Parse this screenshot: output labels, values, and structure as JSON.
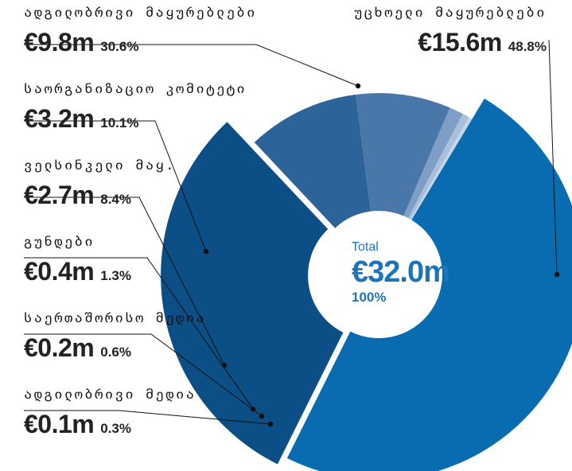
{
  "chart_data": {
    "type": "pie",
    "currency": "€",
    "unit": "m",
    "slices": [
      {
        "label": "უცხოელი მაყურებლები",
        "amount": "€15.6m",
        "value": 15.6,
        "percent": "48.8%",
        "color": "#0a6cb0"
      },
      {
        "label": "ადგილობრივი მაყურებლები",
        "amount": "€9.8m",
        "value": 9.8,
        "percent": "30.6%",
        "color": "#0b4f86"
      },
      {
        "label": "საორგანიზაციო კომიტეტი",
        "amount": "€3.2m",
        "value": 3.2,
        "percent": "10.1%",
        "color": "#2c6399"
      },
      {
        "label": "ველსინკელი მაყ.",
        "amount": "€2.7m",
        "value": 2.7,
        "percent": "8.4%",
        "color": "#4a77a9"
      },
      {
        "label": "გუნდები",
        "amount": "€0.4m",
        "value": 0.4,
        "percent": "1.3%",
        "color": "#7f9ec6"
      },
      {
        "label": "საერთაშორისო მედია",
        "amount": "€0.2m",
        "value": 0.2,
        "percent": "0.6%",
        "color": "#a9bfdb"
      },
      {
        "label": "ადგილობრივი მედია",
        "amount": "€0.1m",
        "value": 0.1,
        "percent": "0.3%",
        "color": "#c7d7ea"
      }
    ],
    "total": {
      "label": "Total",
      "amount": "€32.0m",
      "percent": "100%"
    }
  }
}
